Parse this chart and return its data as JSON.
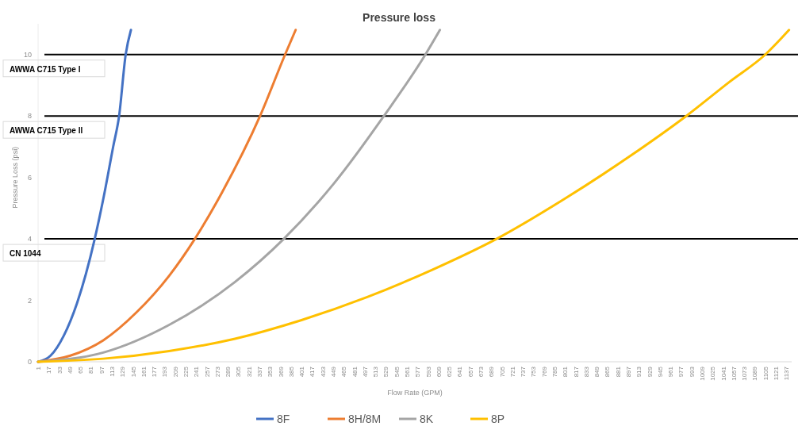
{
  "chart_data": {
    "type": "line",
    "title": "Pressure loss",
    "xlabel": "Flow Rate (GPM)",
    "ylabel": "Pressure Loss (psi)",
    "xlim": [
      1,
      1145
    ],
    "xticks": [
      1,
      17,
      33,
      49,
      65,
      81,
      97,
      113,
      129,
      145,
      161,
      177,
      193,
      209,
      225,
      241,
      257,
      273,
      289,
      305,
      321,
      337,
      353,
      369,
      385,
      401,
      417,
      433,
      449,
      465,
      481,
      497,
      513,
      529,
      545,
      561,
      577,
      593,
      609,
      625,
      641,
      657,
      673,
      689,
      705,
      721,
      737,
      753,
      769,
      785,
      801,
      817,
      833,
      849,
      865,
      881,
      897,
      913,
      929,
      945,
      961,
      977,
      993,
      1009,
      1025,
      1041,
      1057,
      1073,
      1089,
      1105,
      1121,
      1137
    ],
    "ylim": [
      0,
      11
    ],
    "yticks": [
      0,
      2,
      4,
      6,
      8,
      10
    ],
    "grid": false,
    "legend": "bottom",
    "line_style": "solid",
    "marker": "none",
    "series": [
      {
        "name": "8F",
        "color": "#4472c4",
        "x": [
          1,
          20,
          40,
          60,
          87,
          100,
          115,
          124,
          134,
          142
        ],
        "values": [
          0,
          0.2,
          0.85,
          1.9,
          4,
          5.3,
          7,
          8,
          10,
          10.8
        ]
      },
      {
        "name": "8H/8M",
        "color": "#ed7d31",
        "x": [
          1,
          50,
          100,
          150,
          200,
          239,
          280,
          338,
          376,
          392
        ],
        "values": [
          0,
          0.2,
          0.7,
          1.6,
          2.8,
          4,
          5.5,
          8,
          10,
          10.8
        ]
      },
      {
        "name": "8K",
        "color": "#a5a5a5",
        "x": [
          1,
          100,
          200,
          300,
          374,
          450,
          526,
          589,
          611
        ],
        "values": [
          0,
          0.3,
          1.2,
          2.6,
          4,
          5.8,
          8,
          10,
          10.8
        ]
      },
      {
        "name": "8P",
        "color": "#ffc000",
        "x": [
          1,
          100,
          200,
          300,
          400,
          500,
          600,
          697,
          800,
          900,
          985,
          1050,
          1105,
          1141
        ],
        "values": [
          0,
          0.1,
          0.35,
          0.75,
          1.35,
          2.1,
          3,
          4,
          5.3,
          6.7,
          8,
          9.1,
          10,
          10.8
        ]
      }
    ],
    "ref_lines": [
      {
        "axis": "y",
        "value": 10,
        "label": "AWWA C715 Type I",
        "color": "#000000"
      },
      {
        "axis": "y",
        "value": 8,
        "label": "AWWA C715 Type II",
        "color": "#000000"
      },
      {
        "axis": "y",
        "value": 4,
        "label": "CN 1044",
        "color": "#000000"
      }
    ]
  }
}
